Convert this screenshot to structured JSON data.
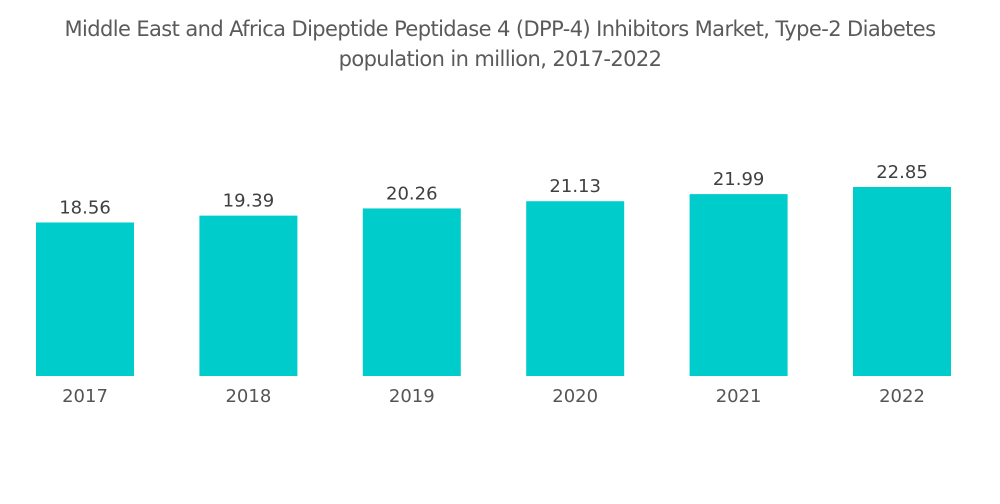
{
  "chart_data": {
    "type": "bar",
    "title_line1": "Middle East and Africa Dipeptide Peptidase 4 (DPP-4) Inhibitors Market, Type-2 Diabetes",
    "title_line2": "population in million, 2017-2022",
    "categories": [
      "2017",
      "2018",
      "2019",
      "2020",
      "2021",
      "2022"
    ],
    "values": [
      18.56,
      19.39,
      20.26,
      21.13,
      21.99,
      22.85
    ],
    "labels": [
      "18.56",
      "19.39",
      "20.26",
      "21.13",
      "21.99",
      "22.85"
    ],
    "xlabel": "",
    "ylabel": "",
    "ylim": [
      0,
      22.85
    ],
    "grid": false,
    "legend": "none",
    "bar_color": "#00cccc"
  }
}
